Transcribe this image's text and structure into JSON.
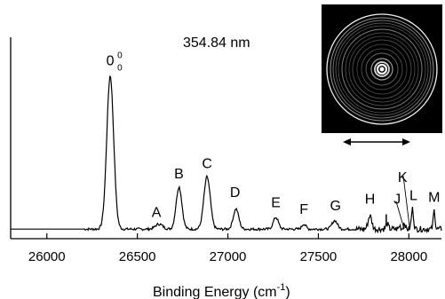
{
  "chart_data": {
    "type": "line",
    "title": "",
    "annotation_text": "354.84 nm",
    "xlabel_main": "Binding Energy (cm",
    "xlabel_exp": "-1",
    "xlabel_close": ")",
    "ylabel": "",
    "xlim": [
      25800,
      28180
    ],
    "ylim": [
      0,
      1.0
    ],
    "x_ticks": [
      26000,
      26500,
      27000,
      27500,
      28000
    ],
    "x_tick_labels": [
      "26000",
      "26500",
      "27000",
      "27500",
      "28000"
    ],
    "grid": false,
    "legend": "none",
    "series": [
      {
        "color": "#000000",
        "peaks": [
          {
            "x": 26350,
            "y": 0.91,
            "width": 38
          },
          {
            "x": 26620,
            "y": 0.03,
            "width": 40
          },
          {
            "x": 26730,
            "y": 0.25,
            "width": 32
          },
          {
            "x": 26885,
            "y": 0.31,
            "width": 35
          },
          {
            "x": 27045,
            "y": 0.12,
            "width": 30
          },
          {
            "x": 27265,
            "y": 0.07,
            "width": 28
          },
          {
            "x": 27420,
            "y": 0.03,
            "width": 22
          },
          {
            "x": 27590,
            "y": 0.05,
            "width": 30
          },
          {
            "x": 27785,
            "y": 0.08,
            "width": 20
          },
          {
            "x": 27880,
            "y": 0.03,
            "width": 14
          },
          {
            "x": 27950,
            "y": 0.02,
            "width": 10
          },
          {
            "x": 27975,
            "y": 0.04,
            "width": 10
          },
          {
            "x": 28020,
            "y": 0.12,
            "width": 12
          },
          {
            "x": 28140,
            "y": 0.11,
            "width": 10
          }
        ],
        "baseline": 0.02
      }
    ],
    "peak_labels": [
      {
        "text": "0",
        "superscript": "0",
        "subscript": "0",
        "x": 26350,
        "y": 0.97
      },
      {
        "text": "A",
        "x": 26605,
        "y": 0.07
      },
      {
        "text": "B",
        "x": 26730,
        "y": 0.3
      },
      {
        "text": "C",
        "x": 26885,
        "y": 0.36
      },
      {
        "text": "D",
        "x": 27040,
        "y": 0.19
      },
      {
        "text": "E",
        "x": 27265,
        "y": 0.13
      },
      {
        "text": "F",
        "x": 27420,
        "y": 0.09
      },
      {
        "text": "G",
        "x": 27595,
        "y": 0.11
      },
      {
        "text": "H",
        "x": 27785,
        "y": 0.15
      },
      {
        "text": "I",
        "x": 27875,
        "y": 0.03
      },
      {
        "text": "J",
        "x": 27935,
        "y": 0.15
      },
      {
        "text": "K",
        "x": 27965,
        "y": 0.28
      },
      {
        "text": "L",
        "x": 28025,
        "y": 0.17
      },
      {
        "text": "M",
        "x": 28140,
        "y": 0.16
      }
    ],
    "inset": {
      "description_icon": "photoelectron-image-icon",
      "background": "#000000",
      "ring_color": "#ffffff",
      "arrow_icon": "double-arrow-icon"
    }
  }
}
